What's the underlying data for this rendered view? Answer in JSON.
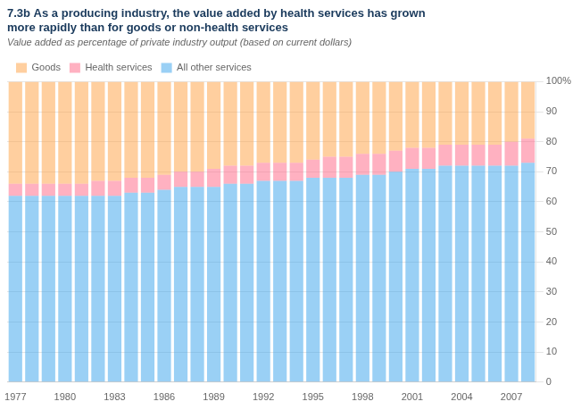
{
  "chart_data": {
    "type": "bar",
    "title": [
      "7.3b As a producing industry, the value added by health services has grown",
      "more rapidly than for goods or non-health services"
    ],
    "subtitle": "Value added as percentage of private industry output (based on current dollars)",
    "categories": [
      "1977",
      null,
      null,
      "1980",
      null,
      null,
      "1983",
      null,
      null,
      "1986",
      null,
      null,
      "1989",
      null,
      null,
      "1992",
      null,
      null,
      "1995",
      null,
      null,
      "1998",
      null,
      null,
      "2001",
      null,
      null,
      "2004",
      null,
      null,
      "2007",
      null
    ],
    "series": [
      {
        "name": "All other services",
        "values": [
          62,
          62,
          62,
          62,
          62,
          62,
          62,
          63,
          63,
          64,
          65,
          65,
          65,
          66,
          66,
          67,
          67,
          67,
          68,
          68,
          68,
          69,
          69,
          70,
          71,
          71,
          72,
          72,
          72,
          72,
          72,
          73
        ]
      },
      {
        "name": "Health services",
        "values": [
          4,
          4,
          4,
          4,
          4,
          5,
          5,
          5,
          5,
          5,
          5,
          5,
          6,
          6,
          6,
          6,
          6,
          6,
          6,
          7,
          7,
          7,
          7,
          7,
          7,
          7,
          7,
          7,
          7,
          7,
          8,
          8
        ]
      },
      {
        "name": "Goods",
        "values": [
          34,
          34,
          34,
          34,
          34,
          33,
          33,
          32,
          32,
          31,
          30,
          30,
          29,
          28,
          28,
          27,
          27,
          27,
          26,
          25,
          25,
          24,
          24,
          23,
          22,
          22,
          21,
          21,
          21,
          21,
          20,
          19
        ]
      }
    ],
    "stacked": true,
    "ylim": [
      0,
      100
    ],
    "yticks": [
      0,
      10,
      20,
      30,
      40,
      50,
      60,
      70,
      80,
      90,
      {
        "value": 100,
        "label": "100%"
      }
    ],
    "grid": true,
    "legend": "upper left"
  }
}
